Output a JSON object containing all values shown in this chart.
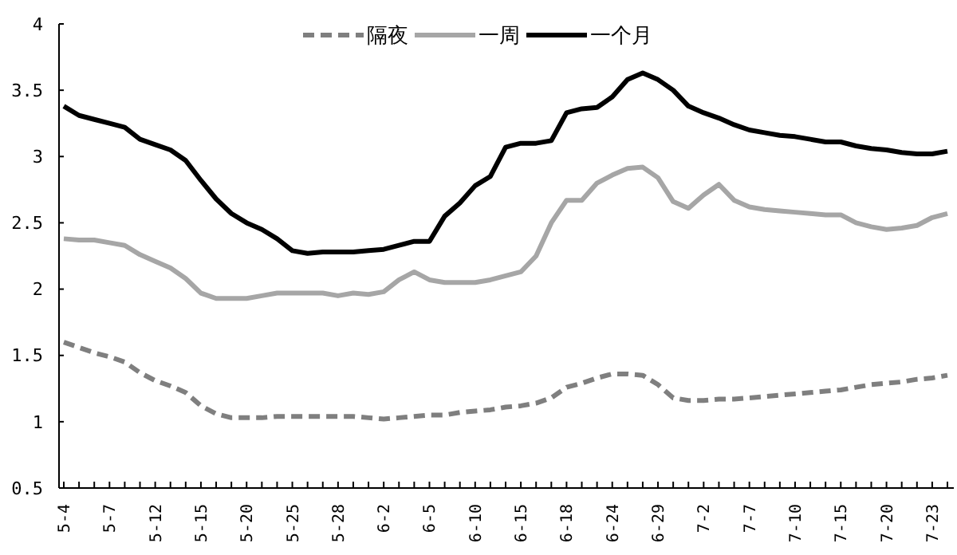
{
  "chart_data": {
    "type": "line",
    "categories": [
      "5-4",
      null,
      null,
      "5-7",
      null,
      null,
      "5-12",
      null,
      null,
      "5-15",
      null,
      null,
      "5-20",
      null,
      null,
      "5-25",
      null,
      null,
      "5-28",
      null,
      null,
      "6-2",
      null,
      null,
      "6-5",
      null,
      null,
      "6-10",
      null,
      null,
      "6-15",
      null,
      null,
      "6-18",
      null,
      null,
      "6-24",
      null,
      null,
      "6-29",
      null,
      null,
      "7-2",
      null,
      null,
      "7-7",
      null,
      null,
      "7-10",
      null,
      null,
      "7-15",
      null,
      null,
      "7-20",
      null,
      null,
      "7-23",
      null
    ],
    "ylim": [
      0.5,
      4
    ],
    "yticks": [
      0.5,
      1,
      1.5,
      2,
      2.5,
      3,
      3.5,
      4
    ],
    "grid": false,
    "legend": "top",
    "marker": "none",
    "series": [
      {
        "name": "隔夜",
        "color": "#7f7f7f",
        "line_style": "dashed",
        "values": [
          1.6,
          1.56,
          1.52,
          1.49,
          1.45,
          1.37,
          1.31,
          1.27,
          1.22,
          1.12,
          1.06,
          1.03,
          1.03,
          1.03,
          1.04,
          1.04,
          1.04,
          1.04,
          1.04,
          1.04,
          1.03,
          1.02,
          1.03,
          1.04,
          1.05,
          1.05,
          1.07,
          1.08,
          1.09,
          1.11,
          1.12,
          1.14,
          1.18,
          1.26,
          1.29,
          1.33,
          1.36,
          1.36,
          1.35,
          1.28,
          1.18,
          1.16,
          1.16,
          1.17,
          1.17,
          1.18,
          1.19,
          1.2,
          1.21,
          1.22,
          1.23,
          1.24,
          1.26,
          1.28,
          1.29,
          1.3,
          1.32,
          1.33,
          1.35
        ]
      },
      {
        "name": "一周",
        "color": "#a6a6a6",
        "line_style": "solid",
        "values": [
          2.38,
          2.37,
          2.37,
          2.35,
          2.33,
          2.26,
          2.21,
          2.16,
          2.08,
          1.97,
          1.93,
          1.93,
          1.93,
          1.95,
          1.97,
          1.97,
          1.97,
          1.97,
          1.95,
          1.97,
          1.96,
          1.98,
          2.07,
          2.13,
          2.07,
          2.05,
          2.05,
          2.05,
          2.07,
          2.1,
          2.13,
          2.25,
          2.5,
          2.67,
          2.67,
          2.8,
          2.86,
          2.91,
          2.92,
          2.84,
          2.66,
          2.61,
          2.71,
          2.79,
          2.67,
          2.62,
          2.6,
          2.59,
          2.58,
          2.57,
          2.56,
          2.56,
          2.5,
          2.47,
          2.45,
          2.46,
          2.48,
          2.54,
          2.57
        ]
      },
      {
        "name": "一个月",
        "color": "#000000",
        "line_style": "solid",
        "values": [
          3.38,
          3.31,
          3.28,
          3.25,
          3.22,
          3.13,
          3.09,
          3.05,
          2.97,
          2.82,
          2.68,
          2.57,
          2.5,
          2.45,
          2.38,
          2.29,
          2.27,
          2.28,
          2.28,
          2.28,
          2.29,
          2.3,
          2.33,
          2.36,
          2.36,
          2.55,
          2.65,
          2.78,
          2.85,
          3.07,
          3.1,
          3.1,
          3.12,
          3.33,
          3.36,
          3.37,
          3.45,
          3.58,
          3.63,
          3.58,
          3.5,
          3.38,
          3.33,
          3.29,
          3.24,
          3.2,
          3.18,
          3.16,
          3.15,
          3.13,
          3.11,
          3.11,
          3.08,
          3.06,
          3.05,
          3.03,
          3.02,
          3.02,
          3.04
        ]
      }
    ]
  }
}
